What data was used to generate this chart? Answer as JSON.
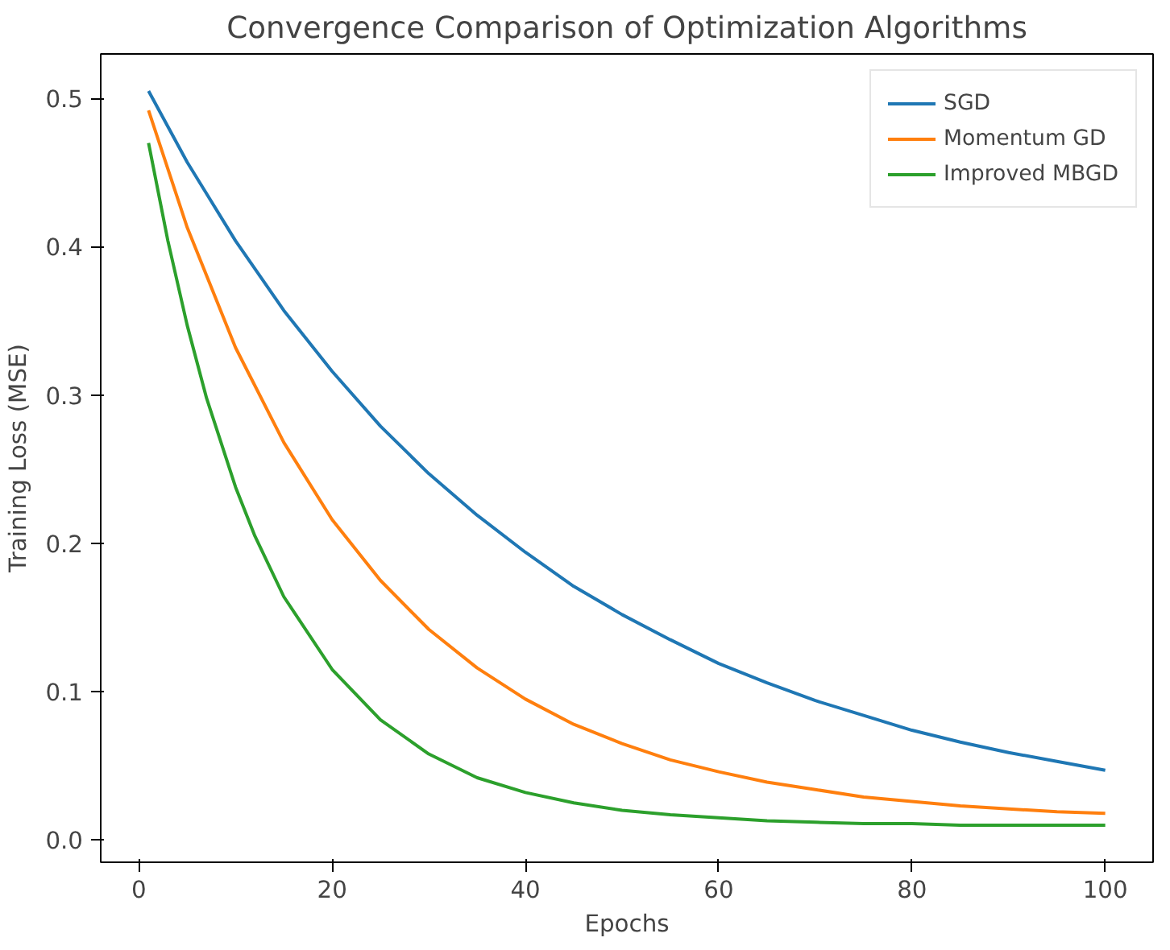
{
  "chart_data": {
    "type": "line",
    "title": "Convergence Comparison of Optimization Algorithms",
    "xlabel": "Epochs",
    "ylabel": "Training Loss (MSE)",
    "xlim": [
      -3.95,
      104.95
    ],
    "ylim": [
      -0.015,
      0.53
    ],
    "xticks": [
      0,
      20,
      40,
      60,
      80,
      100
    ],
    "yticks": [
      {
        "value": 0,
        "label": "0.0"
      },
      {
        "value": 0.1,
        "label": "0.1"
      },
      {
        "value": 0.2,
        "label": "0.2"
      },
      {
        "value": 0.3,
        "label": "0.3"
      },
      {
        "value": 0.4,
        "label": "0.4"
      },
      {
        "value": 0.5,
        "label": "0.5"
      }
    ],
    "grid": false,
    "legend": "top right",
    "marker": "none",
    "line_style": "solid",
    "series": [
      {
        "name": "SGD",
        "color": "#1f77b4",
        "x": [
          1,
          5,
          10,
          15,
          20,
          25,
          30,
          35,
          40,
          45,
          50,
          55,
          60,
          65,
          70,
          75,
          80,
          85,
          90,
          95,
          100
        ],
        "values": [
          0.505,
          0.457,
          0.404,
          0.357,
          0.316,
          0.279,
          0.247,
          0.219,
          0.194,
          0.171,
          0.152,
          0.135,
          0.119,
          0.106,
          0.094,
          0.084,
          0.074,
          0.066,
          0.059,
          0.053,
          0.047
        ]
      },
      {
        "name": "Momentum GD",
        "color": "#ff7f0e",
        "x": [
          1,
          5,
          10,
          15,
          20,
          25,
          30,
          35,
          40,
          45,
          50,
          55,
          60,
          65,
          70,
          75,
          80,
          85,
          90,
          95,
          100
        ],
        "values": [
          0.492,
          0.413,
          0.332,
          0.268,
          0.216,
          0.175,
          0.142,
          0.116,
          0.095,
          0.078,
          0.065,
          0.054,
          0.046,
          0.039,
          0.034,
          0.029,
          0.026,
          0.023,
          0.021,
          0.019,
          0.018
        ]
      },
      {
        "name": "Improved MBGD",
        "color": "#2ca02c",
        "x": [
          1,
          3,
          5,
          7,
          10,
          12,
          15,
          20,
          25,
          30,
          35,
          40,
          45,
          50,
          55,
          60,
          65,
          70,
          75,
          80,
          85,
          90,
          95,
          100
        ],
        "values": [
          0.47,
          0.404,
          0.347,
          0.298,
          0.238,
          0.205,
          0.164,
          0.115,
          0.081,
          0.058,
          0.042,
          0.032,
          0.025,
          0.02,
          0.017,
          0.015,
          0.013,
          0.012,
          0.011,
          0.011,
          0.01,
          0.01,
          0.01,
          0.01
        ]
      }
    ]
  }
}
